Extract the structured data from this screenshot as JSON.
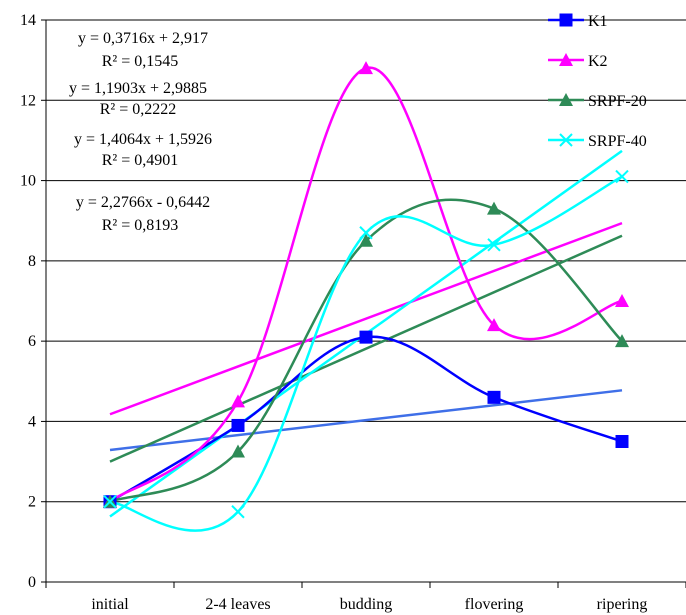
{
  "chart_data": {
    "type": "line",
    "title": "",
    "xlabel": "",
    "ylabel": "",
    "categories": [
      "initial",
      "2-4 leaves",
      "budding",
      "flovering",
      "ripering"
    ],
    "ylim": [
      0,
      14
    ],
    "yticks": [
      0,
      2,
      4,
      6,
      8,
      10,
      12,
      14
    ],
    "grid": "horizontal",
    "legend_position": "top-right",
    "series": [
      {
        "name": "K1",
        "color": "#0000ff",
        "marker": "square",
        "values": [
          2.0,
          3.9,
          6.1,
          4.6,
          3.5
        ],
        "trendline": {
          "slope": 0.3716,
          "intercept": 2.917,
          "color": "#3f6fe8"
        }
      },
      {
        "name": "K2",
        "color": "#ff00ff",
        "marker": "triangle",
        "values": [
          2.0,
          4.5,
          12.8,
          6.4,
          7.0
        ],
        "trendline": {
          "slope": 1.1903,
          "intercept": 2.9885,
          "color": "#ff00ff"
        }
      },
      {
        "name": "SRPF-20",
        "color": "#2e8b57",
        "marker": "triangle",
        "values": [
          2.0,
          3.25,
          8.5,
          9.3,
          6.0
        ],
        "trendline": {
          "slope": 1.4064,
          "intercept": 1.5926,
          "color": "#2e8b57"
        }
      },
      {
        "name": "SRPF-40",
        "color": "#00ffff",
        "marker": "x",
        "values": [
          2.0,
          1.75,
          8.7,
          8.4,
          10.1
        ],
        "trendline": {
          "slope": 2.2766,
          "intercept": -0.6442,
          "color": "#00ffff"
        }
      }
    ],
    "annotations": [
      {
        "equation": "y = 0,3716x + 2,917",
        "r2": "R² = 0,1545"
      },
      {
        "equation": "y = 1,1903x + 2,9885",
        "r2": "R² = 0,2222"
      },
      {
        "equation": "y = 1,4064x + 1,5926",
        "r2": "R² = 0,4901"
      },
      {
        "equation": "y = 2,2766x - 0,6442",
        "r2": "R² = 0,8193"
      }
    ]
  }
}
